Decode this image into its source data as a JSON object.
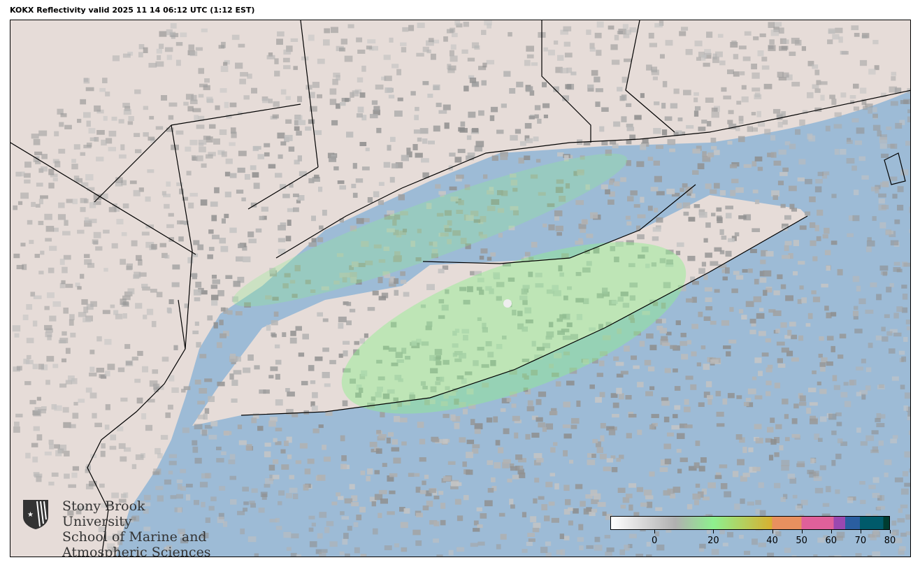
{
  "title": "KOKX Reflectivity valid 2025 11 14 06:12 UTC (1:12 EST)",
  "logo": {
    "lines": [
      "Stony Brook University",
      "School of Marine and",
      "Atmospheric Sciences"
    ]
  },
  "colorbar": {
    "range": [
      -15,
      80
    ],
    "ticks": [
      "0",
      "20",
      "40",
      "50",
      "60",
      "70",
      "80"
    ],
    "tick_values": [
      0,
      20,
      40,
      50,
      60,
      70,
      80
    ],
    "colors": {
      "low": "#ffffff",
      "gray": "#b0b0b0",
      "green": "#8ef08e",
      "yellow": "#d8b030",
      "orange": "#e8905f",
      "pink": "#e0609a",
      "purple": "#9a48b0",
      "blue": "#2a5ea0",
      "teal": "#005a6a",
      "dark": "#003c30"
    }
  },
  "map": {
    "colors": {
      "land": "#e6dcd8",
      "water": "#9dbbd6",
      "echo_gray": "#9a9a9a",
      "echo_green": "#8ef08e"
    }
  }
}
